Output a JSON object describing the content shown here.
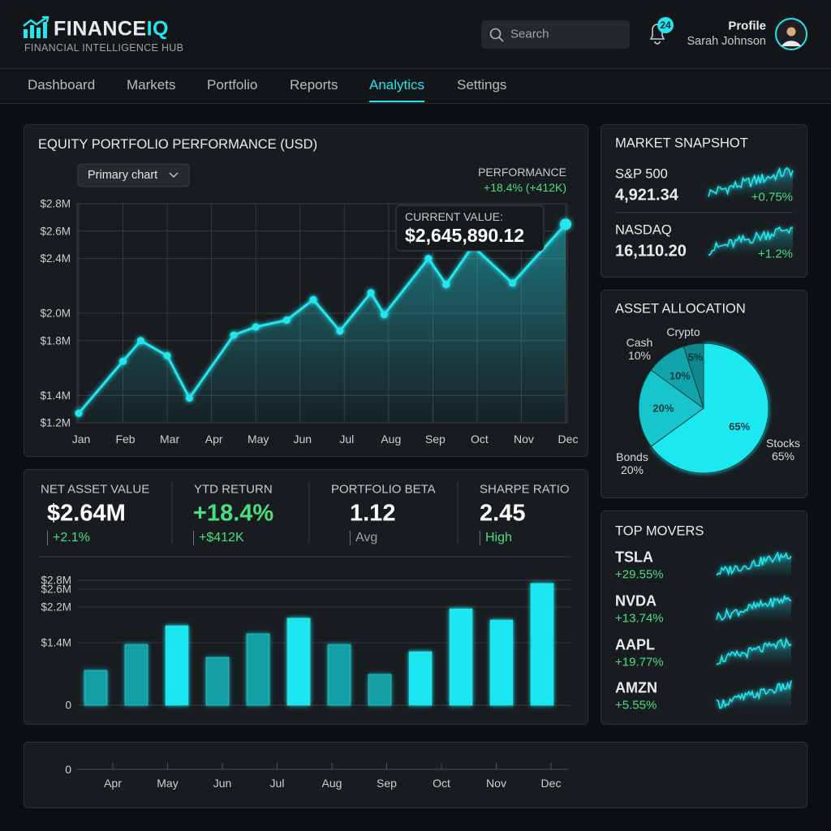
{
  "header": {
    "logo": "FINANCE",
    "logo_accent": "IQ",
    "tagline": "FINANCIAL INTELLIGENCE HUB",
    "search_placeholder": "Search",
    "notifications": 24,
    "profile_label": "Profile",
    "user_name": "Sarah Johnson"
  },
  "nav": {
    "items": [
      "Dashboard",
      "Markets",
      "Portfolio",
      "Reports",
      "Analytics",
      "Settings"
    ],
    "active": "Analytics"
  },
  "kpis": [
    {
      "label": "NET ASSET VALUE",
      "value": "$2.64M",
      "change": "+2.1%",
      "tone": "positive"
    },
    {
      "label": "YTD RETURN",
      "value": "+18.4%",
      "change": "+$412K",
      "tone": "positive",
      "value_tone": "positive"
    },
    {
      "label": "PORTFOLIO BETA",
      "value": "1.12",
      "change": "Avg",
      "tone": "neutral"
    },
    {
      "label": "SHARPE RATIO",
      "value": "2.45",
      "change": "High",
      "tone": "positive"
    }
  ],
  "market_snapshot": {
    "title": "MARKET SNAPSHOT",
    "items": [
      {
        "name": "S&P 500",
        "value": "4,921.34",
        "change": "+0.75%"
      },
      {
        "name": "NASDAQ",
        "value": "16,110.20",
        "change": "+1.2%"
      }
    ]
  },
  "top_movers": {
    "title": "TOP MOVERS",
    "items": [
      {
        "symbol": "TSLA",
        "change": "+29.55%"
      },
      {
        "symbol": "NVDA",
        "change": "+13.74%"
      },
      {
        "symbol": "AAPL",
        "change": "+19.77%"
      },
      {
        "symbol": "AMZN",
        "change": "+5.55%"
      }
    ]
  },
  "chart_data": [
    {
      "type": "line",
      "title": "EQUITY PORTFOLIO PERFORMANCE (USD)",
      "dropdown": "Primary chart",
      "performance_label": "PERFORMANCE",
      "performance_value": "+18.4% (+412K)",
      "tooltip_label": "CURRENT VALUE:",
      "tooltip_value": "$2,645,890.12",
      "x": [
        0,
        1,
        1.4,
        2,
        2.5,
        3.5,
        4,
        4.7,
        5.3,
        5.9,
        6.6,
        6.9,
        7.9,
        8.3,
        8.9,
        9.8,
        11
      ],
      "series": [
        {
          "color": "#22e5ee",
          "values": [
            1.27,
            1.65,
            1.8,
            1.69,
            1.38,
            1.84,
            1.9,
            1.95,
            2.1,
            1.87,
            2.15,
            1.99,
            2.4,
            2.21,
            2.49,
            2.22,
            2.65
          ]
        }
      ],
      "xlim": [
        0,
        11
      ],
      "xticks": [
        {
          "value": 0,
          "label": "Jan"
        },
        {
          "value": 1,
          "label": "Feb"
        },
        {
          "value": 2,
          "label": "Mar"
        },
        {
          "value": 3,
          "label": "Apr"
        },
        {
          "value": 4,
          "label": "May"
        },
        {
          "value": 5,
          "label": "Jun"
        },
        {
          "value": 6,
          "label": "Jul"
        },
        {
          "value": 7,
          "label": "Aug"
        },
        {
          "value": 8,
          "label": "Sep"
        },
        {
          "value": 9,
          "label": "Oct"
        },
        {
          "value": 10,
          "label": "Nov"
        },
        {
          "value": 11,
          "label": "Dec"
        }
      ],
      "ylim": [
        1.2,
        2.8
      ],
      "yticks": [
        {
          "value": 1.2,
          "label": "$1.2M"
        },
        {
          "value": 1.4,
          "label": "$1.4M"
        },
        {
          "value": 1.8,
          "label": "$1.8M"
        },
        {
          "value": 2.0,
          "label": "$2.0M"
        },
        {
          "value": 2.4,
          "label": "$2.4M"
        },
        {
          "value": 2.6,
          "label": "$2.6M"
        },
        {
          "value": 2.8,
          "label": "$2.8M"
        }
      ],
      "grid": true,
      "area": true
    },
    {
      "type": "bar",
      "values": [
        0.78,
        1.36,
        1.78,
        1.07,
        1.6,
        1.95,
        1.36,
        0.69,
        1.2,
        2.16,
        1.91,
        2.73
      ],
      "colors": [
        "#139ea5",
        "#139ea5",
        "#1fe6ef",
        "#139ea5",
        "#139ea5",
        "#1fe6ef",
        "#139ea5",
        "#139ea5",
        "#1fe6ef",
        "#1fe6ef",
        "#1fe6ef",
        "#1fe6ef"
      ],
      "ylim": [
        0,
        2.8
      ],
      "yticks": [
        0,
        {
          "value": 2.2,
          "label": "$2.2M"
        },
        {
          "value": 1.4,
          "label": "$1.4M"
        },
        {
          "value": 2.6,
          "label": "$2.6M"
        },
        {
          "value": 2.8,
          "label": "$2.8M"
        }
      ],
      "grid": true
    },
    {
      "type": "pie",
      "title": "ASSET ALLOCATION",
      "categories": [
        "Stocks",
        "Bonds",
        "Cash",
        "Crypto"
      ],
      "values": [
        65,
        20,
        10,
        5
      ],
      "value_labels": [
        "65%",
        "20%",
        "10%",
        "5%"
      ],
      "colors": [
        "#1de8f0",
        "#17c5cd",
        "#12a4ab",
        "#0f878d"
      ]
    },
    {
      "type": "axis",
      "categories": [
        "Apr",
        "May",
        "Jun",
        "Jul",
        "Aug",
        "Sep",
        "Oct",
        "Nov",
        "Dec"
      ],
      "yticks": [
        0
      ]
    }
  ]
}
